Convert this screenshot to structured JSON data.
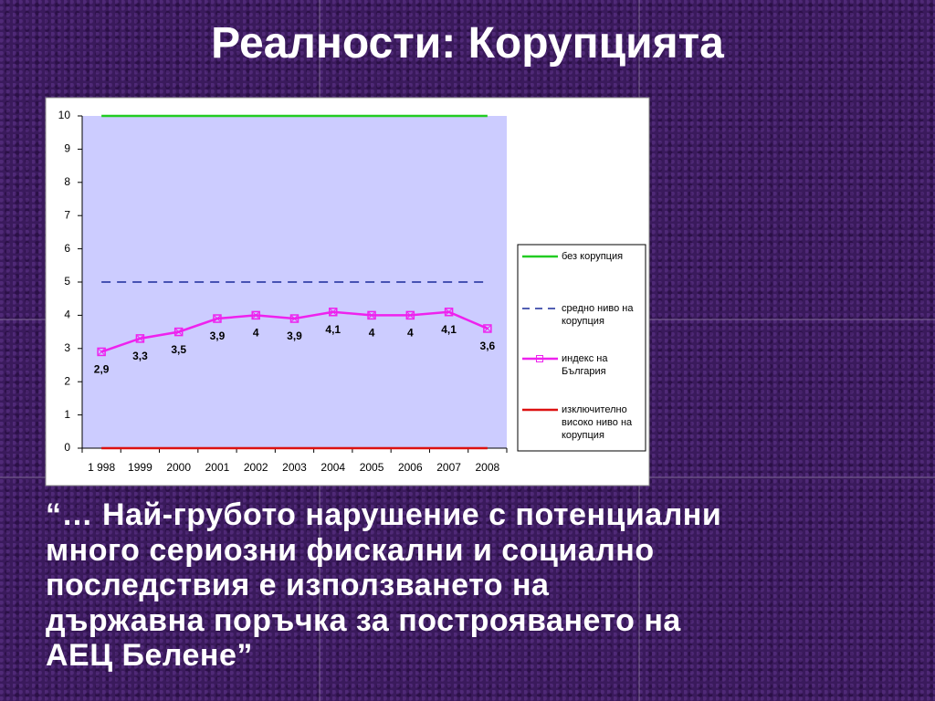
{
  "slide": {
    "title": "Реалности: Корупцията",
    "quote": [
      "“… Най-грубото нарушение с потенциални",
      "много сериозни фискални и социално",
      "последствия е използването на",
      "държавна поръчка за построяването на",
      "АЕЦ Белене”"
    ]
  },
  "chart_data": {
    "type": "line",
    "categories": [
      "1 998",
      "1999",
      "2000",
      "2001",
      "2002",
      "2003",
      "2004",
      "2005",
      "2006",
      "2007",
      "2008"
    ],
    "series": [
      {
        "name": "без корупция",
        "color": "#22cc22",
        "values": [
          10,
          10,
          10,
          10,
          10,
          10,
          10,
          10,
          10,
          10,
          10
        ]
      },
      {
        "name": "средно ниво на корупция",
        "color": "#1a2a9a",
        "dashed": true,
        "values": [
          5,
          5,
          5,
          5,
          5,
          5,
          5,
          5,
          5,
          5,
          5
        ]
      },
      {
        "name": "индекс на България",
        "color": "#ee22ee",
        "marker": "square-x",
        "values": [
          2.9,
          3.3,
          3.5,
          3.9,
          4,
          3.9,
          4.1,
          4,
          4,
          4.1,
          3.6
        ],
        "value_labels": [
          "2,9",
          "3,3",
          "3,5",
          "3,9",
          "4",
          "3,9",
          "4,1",
          "4",
          "4",
          "4,1",
          "3,6"
        ]
      },
      {
        "name": "изключително високо ниво на корупция",
        "color": "#dd1111",
        "values": [
          0,
          0,
          0,
          0,
          0,
          0,
          0,
          0,
          0,
          0,
          0
        ]
      }
    ],
    "ylim": [
      0,
      10
    ],
    "yticks": [
      0,
      1,
      2,
      3,
      4,
      5,
      6,
      7,
      8,
      9,
      10
    ],
    "plot_background": "#ccccff"
  }
}
